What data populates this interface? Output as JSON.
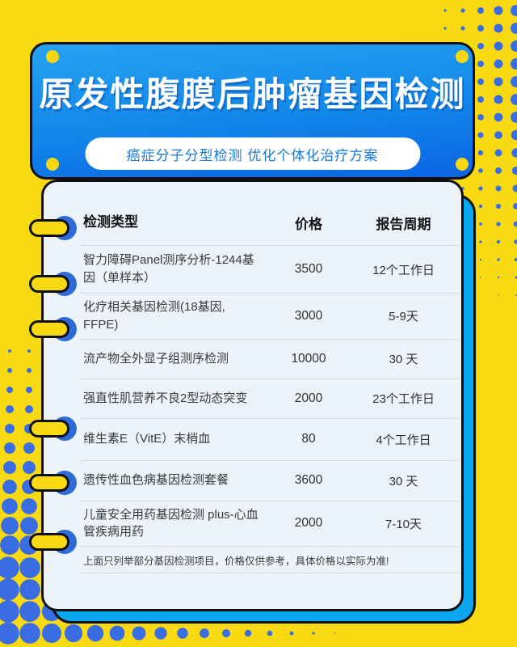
{
  "page": {
    "bg_color": "#F8DA12",
    "dot_color": "#3A6CE4",
    "accent_cyan": "#0AA6EF",
    "ring_hole_color": "#2E6BD6"
  },
  "header": {
    "title": "原发性腹膜后肿瘤基因检测",
    "subtitle": "癌症分子分型检测 优化个体化治疗方案",
    "gradient_top": "#27A2F2",
    "gradient_bottom": "#0B64E4",
    "subtitle_text_color": "#1779DE"
  },
  "table": {
    "columns": {
      "type": "检测类型",
      "price": "价格",
      "period": "报告周期"
    },
    "rows": [
      {
        "name": "智力障碍Panel测序分析-1244基因（单样本）",
        "price": "3500",
        "period": "12个工作日"
      },
      {
        "name": "化疗相关基因检测(18基因, FFPE)",
        "price": "3000",
        "period": "5-9天"
      },
      {
        "name": "流产物全外显子组测序检测",
        "price": "10000",
        "period": "30 天"
      },
      {
        "name": "强直性肌营养不良2型动态突变",
        "price": "2000",
        "period": "23个工作日"
      },
      {
        "name": "维生素E（VitE）末梢血",
        "price": "80",
        "period": "4个工作日"
      },
      {
        "name": "遗传性血色病基因检测套餐",
        "price": "3600",
        "period": "30 天"
      },
      {
        "name": "儿童安全用药基因检测 plus-心血管疾病用药",
        "price": "2000",
        "period": "7-10天"
      }
    ],
    "note": "上面只列举部分基因检测项目，价格仅供参考，具体价格以实际为准!"
  }
}
